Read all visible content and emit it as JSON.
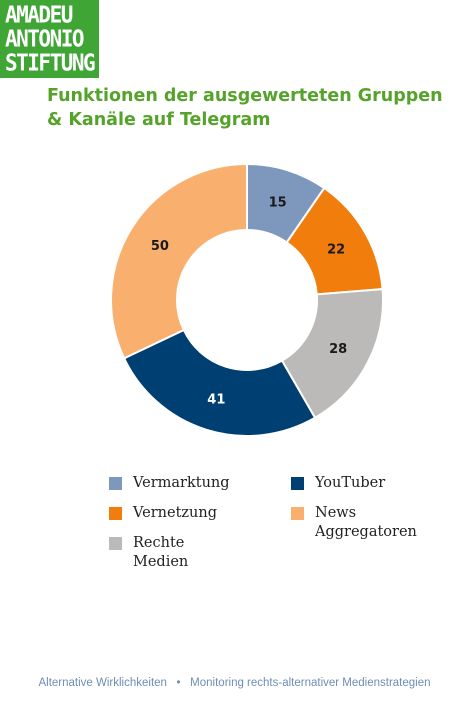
{
  "logo": {
    "line1": "AMADEU",
    "line2": "ANTONIO",
    "line3": "STIFTUNG"
  },
  "title": "Funktionen der ausgewerteten Gruppen & Kanäle auf Telegram",
  "colors": {
    "brand_green": "#3fa535",
    "title_green": "#55a32a",
    "footer_blue": "#6f8db6"
  },
  "chart_data": {
    "type": "pie",
    "donut": true,
    "title": "Funktionen der ausgewerteten Gruppen & Kanäle auf Telegram",
    "categories": [
      "Vermarktung",
      "Vernetzung",
      "Rechte Medien",
      "YouTuber",
      "News Aggregatoren"
    ],
    "values": [
      15,
      22,
      28,
      41,
      50
    ],
    "colors": [
      "#7e98bd",
      "#f07d0c",
      "#bcb9b9",
      "#003f72",
      "#f9b06f"
    ],
    "label_colors": [
      "#1a1a1a",
      "#1a1a1a",
      "#1a1a1a",
      "#ffffff",
      "#1a1a1a"
    ],
    "legend_position": "bottom",
    "legend_order": [
      "Vermarktung",
      "Vernetzung",
      "Rechte Medien",
      "YouTuber",
      "News Aggregatoren"
    ],
    "legend_labels": [
      "Vermarktung",
      "Vernetzung",
      "Rechte Medien",
      "YouTuber",
      "News\nAggregatoren"
    ]
  },
  "footer": {
    "left": "Alternative Wirklichkeiten",
    "separator": "•",
    "right": "Monitoring rechts-alternativer Medienstrategien"
  }
}
